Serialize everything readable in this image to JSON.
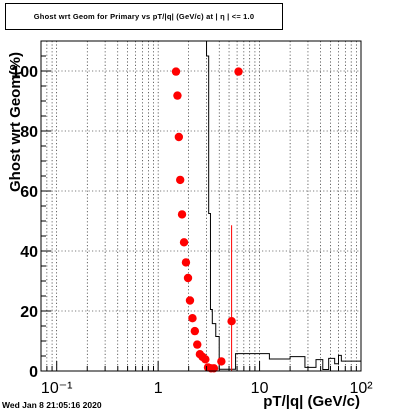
{
  "title": "Ghost wrt Geom for Primary vs pT/|q| (GeV/c) at |  η | <= 1.0",
  "footer": "Wed Jan  8 21:05:16 2020",
  "chart_data": {
    "type": "scatter",
    "title": "Ghost wrt Geom for Primary vs pT/|q| (GeV/c) at |  η | <= 1.0",
    "xlabel": "pT/|q| (GeV/c)",
    "ylabel": "Ghost wrt Geom(%)",
    "x_scale": "log",
    "xlim": [
      0.07,
      100
    ],
    "ylim": [
      0,
      110
    ],
    "x_ticks": [
      {
        "value": 0.1,
        "label": "10⁻¹"
      },
      {
        "value": 1,
        "label": "1"
      },
      {
        "value": 10,
        "label": "10"
      },
      {
        "value": 100,
        "label": "10²"
      }
    ],
    "y_ticks": [
      0,
      20,
      40,
      60,
      80,
      100
    ],
    "grid": true,
    "marker_color": "#ff0000",
    "histogram_color": "#000000",
    "series": [
      {
        "points": [
          {
            "x": 1.5,
            "y": 99.8
          },
          {
            "x": 1.55,
            "y": 91.8
          },
          {
            "x": 1.6,
            "y": 78.0
          },
          {
            "x": 1.65,
            "y": 63.7
          },
          {
            "x": 1.72,
            "y": 52.2
          },
          {
            "x": 1.8,
            "y": 42.9
          },
          {
            "x": 1.88,
            "y": 36.2
          },
          {
            "x": 1.97,
            "y": 31.0
          },
          {
            "x": 2.06,
            "y": 23.5
          },
          {
            "x": 2.18,
            "y": 17.6
          },
          {
            "x": 2.3,
            "y": 13.3
          },
          {
            "x": 2.43,
            "y": 8.8
          },
          {
            "x": 2.58,
            "y": 5.6
          },
          {
            "x": 2.74,
            "y": 4.7
          },
          {
            "x": 2.92,
            "y": 3.9
          },
          {
            "x": 3.1,
            "y": 1.2
          },
          {
            "x": 3.32,
            "y": 0.9
          },
          {
            "x": 3.55,
            "y": 0.9
          },
          {
            "x": 4.2,
            "y": 3.2
          },
          {
            "x": 5.3,
            "y": 16.6,
            "err_lo": 16.6,
            "err_hi": 32.0
          },
          {
            "x": 6.2,
            "y": 99.8
          }
        ]
      }
    ],
    "histogram": [
      {
        "x0": 0.07,
        "x1": 3.0,
        "y": 110
      },
      {
        "x0": 3.0,
        "x1": 3.15,
        "y": 105
      },
      {
        "x0": 3.15,
        "x1": 3.28,
        "y": 52.5
      },
      {
        "x0": 3.28,
        "x1": 3.42,
        "y": 20.5
      },
      {
        "x0": 3.42,
        "x1": 3.7,
        "y": 15.8
      },
      {
        "x0": 3.7,
        "x1": 4.0,
        "y": 11.5
      },
      {
        "x0": 4.0,
        "x1": 5.8,
        "y": 0.6
      },
      {
        "x0": 5.8,
        "x1": 12.5,
        "y": 5.8
      },
      {
        "x0": 12.5,
        "x1": 20.0,
        "y": 4.0
      },
      {
        "x0": 20.0,
        "x1": 28.0,
        "y": 4.8
      },
      {
        "x0": 28.0,
        "x1": 36.0,
        "y": 1.2
      },
      {
        "x0": 36.0,
        "x1": 42.0,
        "y": 3.8
      },
      {
        "x0": 42.0,
        "x1": 48.0,
        "y": 0.5
      },
      {
        "x0": 48.0,
        "x1": 55.0,
        "y": 4.2
      },
      {
        "x0": 55.0,
        "x1": 60.0,
        "y": 2.4
      },
      {
        "x0": 60.0,
        "x1": 64.0,
        "y": 5.2
      },
      {
        "x0": 64.0,
        "x1": 100,
        "y": 3.3
      }
    ]
  }
}
